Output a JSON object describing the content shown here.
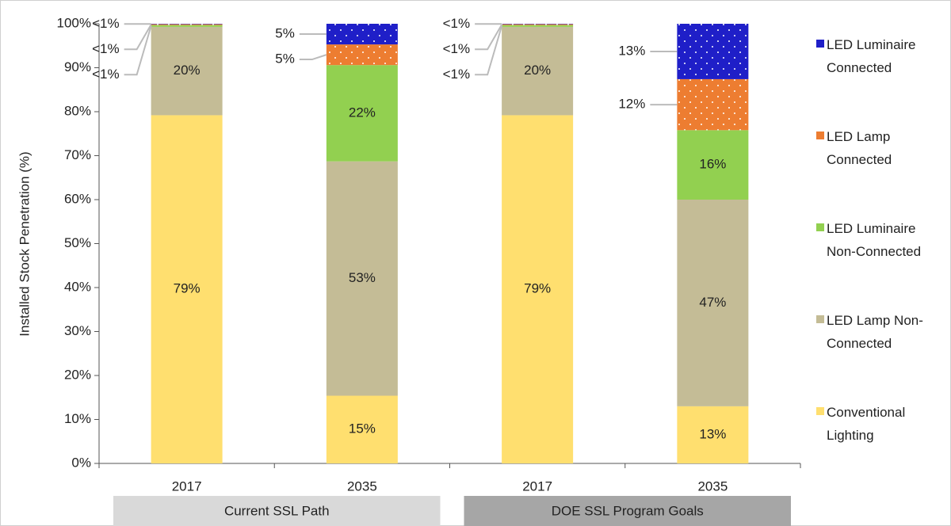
{
  "chart_data": {
    "type": "stacked_bar",
    "y_label": "Installed Stock Penetration (%)",
    "categories": [
      "2017",
      "2035",
      "2017",
      "2035"
    ],
    "groups": [
      {
        "label": "Current SSL Path",
        "color": "#d9d9d9",
        "categories": [
          0,
          1
        ]
      },
      {
        "label": "DOE SSL Program Goals",
        "color": "#a6a6a6",
        "categories": [
          2,
          3
        ]
      }
    ],
    "ylim": [
      0,
      100
    ],
    "yticks": [
      {
        "value": 0,
        "label": "0%"
      },
      {
        "value": 10,
        "label": "10%"
      },
      {
        "value": 20,
        "label": "20%"
      },
      {
        "value": 30,
        "label": "30%"
      },
      {
        "value": 40,
        "label": "40%"
      },
      {
        "value": 50,
        "label": "50%"
      },
      {
        "value": 60,
        "label": "60%"
      },
      {
        "value": 70,
        "label": "70%"
      },
      {
        "value": 80,
        "label": "80%"
      },
      {
        "value": 90,
        "label": "90%"
      },
      {
        "value": 100,
        "label": "100%"
      }
    ],
    "grid": false,
    "legend": "right",
    "series": [
      {
        "name": "Conventional Lighting",
        "color": "#ffdf6f",
        "values": [
          79.2,
          15.4,
          79.2,
          13.0
        ],
        "value_labels": [
          "79%",
          "15%",
          "79%",
          "13%"
        ]
      },
      {
        "name": "LED Lamp Non-Connected",
        "color": "#c4bc96",
        "values": [
          20.1,
          53.3,
          20.1,
          47.0
        ],
        "value_labels": [
          "20%",
          "53%",
          "20%",
          "47%"
        ]
      },
      {
        "name": "LED Luminaire Non-Connected",
        "color": "#92d050",
        "values": [
          0.4,
          21.9,
          0.4,
          15.8
        ],
        "value_labels": [
          "<1%",
          "22%",
          "<1%",
          "16%"
        ]
      },
      {
        "name": "LED Lamp Connected",
        "color": "#ed7d31",
        "pattern": "dots",
        "values": [
          0.2,
          4.7,
          0.2,
          11.6
        ],
        "value_labels": [
          "<1%",
          "5%",
          "<1%",
          "12%"
        ]
      },
      {
        "name": "LED Luminaire Connected",
        "color": "#1f1fc8",
        "pattern": "dots",
        "values": [
          0.1,
          4.7,
          0.1,
          12.6
        ],
        "value_labels": [
          "<1%",
          "5%",
          "<1%",
          "13%"
        ]
      }
    ]
  }
}
